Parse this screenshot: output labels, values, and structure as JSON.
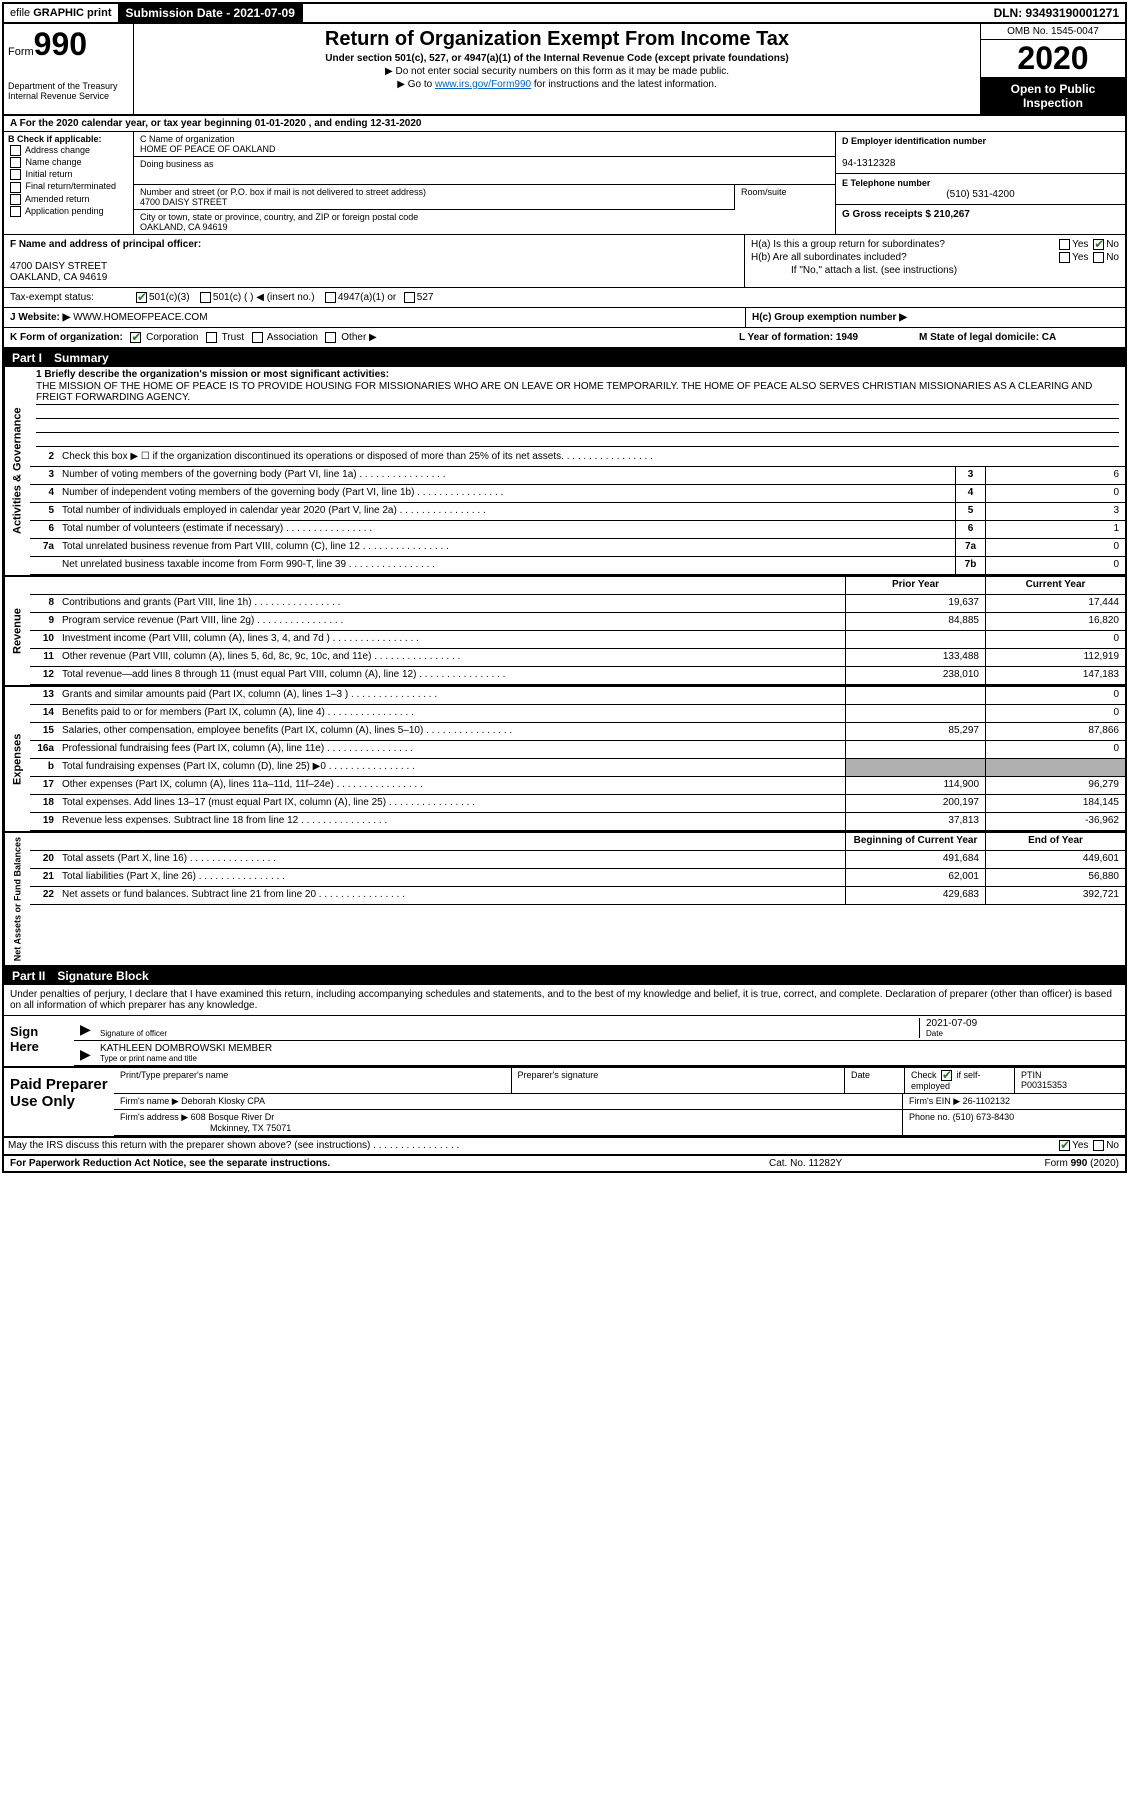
{
  "topbar": {
    "efile_prefix": "efile",
    "efile_graphic": "GRAPHIC",
    "efile_print": "print",
    "submission_label": "Submission Date - 2021-07-09",
    "dln": "DLN: 93493190001271"
  },
  "header": {
    "form_label": "Form",
    "form_number": "990",
    "dept1": "Department of the Treasury",
    "dept2": "Internal Revenue Service",
    "title": "Return of Organization Exempt From Income Tax",
    "subtitle": "Under section 501(c), 527, or 4947(a)(1) of the Internal Revenue Code (except private foundations)",
    "note1": "▶ Do not enter social security numbers on this form as it may be made public.",
    "note2_pre": "▶ Go to ",
    "note2_link": "www.irs.gov/Form990",
    "note2_post": " for instructions and the latest information.",
    "omb": "OMB No. 1545-0047",
    "year": "2020",
    "open_public": "Open to Public Inspection"
  },
  "section_a": "A For the 2020 calendar year, or tax year beginning 01-01-2020    , and ending 12-31-2020",
  "col_b": {
    "label": "B Check if applicable:",
    "opts": [
      "Address change",
      "Name change",
      "Initial return",
      "Final return/terminated",
      "Amended return",
      "Application pending"
    ]
  },
  "col_c": {
    "name_label": "C Name of organization",
    "name": "HOME OF PEACE OF OAKLAND",
    "dba_label": "Doing business as",
    "addr_label": "Number and street (or P.O. box if mail is not delivered to street address)",
    "room_label": "Room/suite",
    "addr": "4700 DAISY STREET",
    "city_label": "City or town, state or province, country, and ZIP or foreign postal code",
    "city": "OAKLAND, CA  94619"
  },
  "col_d": {
    "ein_label": "D Employer identification number",
    "ein": "94-1312328",
    "phone_label": "E Telephone number",
    "phone": "(510) 531-4200",
    "gross_label": "G Gross receipts $ 210,267"
  },
  "col_f": {
    "label": "F  Name and address of principal officer:",
    "addr1": "4700 DAISY STREET",
    "addr2": "OAKLAND, CA  94619"
  },
  "col_h": {
    "ha": "H(a)  Is this a group return for subordinates?",
    "hb": "H(b)  Are all subordinates included?",
    "hb_note": "If \"No,\" attach a list. (see instructions)",
    "hc": "H(c)  Group exemption number ▶"
  },
  "tax_exempt": {
    "label": "Tax-exempt status:",
    "opts": [
      "501(c)(3)",
      "501(c) (  ) ◀ (insert no.)",
      "4947(a)(1) or",
      "527"
    ]
  },
  "website": {
    "label": "J   Website: ▶",
    "value": "WWW.HOMEOFPEACE.COM"
  },
  "klm": {
    "k": "K Form of organization:",
    "k_opts": [
      "Corporation",
      "Trust",
      "Association",
      "Other ▶"
    ],
    "l": "L Year of formation: 1949",
    "m": "M State of legal domicile: CA"
  },
  "part1": {
    "label": "Part I",
    "title": "Summary"
  },
  "mission": {
    "label": "1  Briefly describe the organization's mission or most significant activities:",
    "text": "THE MISSION OF THE HOME OF PEACE IS TO PROVIDE HOUSING FOR MISSIONARIES WHO ARE ON LEAVE OR HOME TEMPORARILY. THE HOME OF PEACE ALSO SERVES CHRISTIAN MISSIONARIES AS A CLEARING AND FREIGT FORWARDING AGENCY."
  },
  "gov_lines": [
    {
      "num": "2",
      "desc": "Check this box ▶ ☐  if the organization discontinued its operations or disposed of more than 25% of its net assets."
    },
    {
      "num": "3",
      "desc": "Number of voting members of the governing body (Part VI, line 1a)",
      "box": "3",
      "val": "6"
    },
    {
      "num": "4",
      "desc": "Number of independent voting members of the governing body (Part VI, line 1b)",
      "box": "4",
      "val": "0"
    },
    {
      "num": "5",
      "desc": "Total number of individuals employed in calendar year 2020 (Part V, line 2a)",
      "box": "5",
      "val": "3"
    },
    {
      "num": "6",
      "desc": "Total number of volunteers (estimate if necessary)",
      "box": "6",
      "val": "1"
    },
    {
      "num": "7a",
      "desc": "Total unrelated business revenue from Part VIII, column (C), line 12",
      "box": "7a",
      "val": "0"
    },
    {
      "num": "",
      "desc": "Net unrelated business taxable income from Form 990-T, line 39",
      "box": "7b",
      "val": "0"
    }
  ],
  "rev_header": {
    "prior": "Prior Year",
    "current": "Current Year"
  },
  "rev_lines": [
    {
      "num": "8",
      "desc": "Contributions and grants (Part VIII, line 1h)",
      "prior": "19,637",
      "current": "17,444"
    },
    {
      "num": "9",
      "desc": "Program service revenue (Part VIII, line 2g)",
      "prior": "84,885",
      "current": "16,820"
    },
    {
      "num": "10",
      "desc": "Investment income (Part VIII, column (A), lines 3, 4, and 7d )",
      "prior": "",
      "current": "0"
    },
    {
      "num": "11",
      "desc": "Other revenue (Part VIII, column (A), lines 5, 6d, 8c, 9c, 10c, and 11e)",
      "prior": "133,488",
      "current": "112,919"
    },
    {
      "num": "12",
      "desc": "Total revenue—add lines 8 through 11 (must equal Part VIII, column (A), line 12)",
      "prior": "238,010",
      "current": "147,183"
    }
  ],
  "exp_lines": [
    {
      "num": "13",
      "desc": "Grants and similar amounts paid (Part IX, column (A), lines 1–3 )",
      "prior": "",
      "current": "0"
    },
    {
      "num": "14",
      "desc": "Benefits paid to or for members (Part IX, column (A), line 4)",
      "prior": "",
      "current": "0"
    },
    {
      "num": "15",
      "desc": "Salaries, other compensation, employee benefits (Part IX, column (A), lines 5–10)",
      "prior": "85,297",
      "current": "87,866"
    },
    {
      "num": "16a",
      "desc": "Professional fundraising fees (Part IX, column (A), line 11e)",
      "prior": "",
      "current": "0"
    },
    {
      "num": "b",
      "desc": "Total fundraising expenses (Part IX, column (D), line 25) ▶0",
      "prior": "grey",
      "current": "grey"
    },
    {
      "num": "17",
      "desc": "Other expenses (Part IX, column (A), lines 11a–11d, 11f–24e)",
      "prior": "114,900",
      "current": "96,279"
    },
    {
      "num": "18",
      "desc": "Total expenses. Add lines 13–17 (must equal Part IX, column (A), line 25)",
      "prior": "200,197",
      "current": "184,145"
    },
    {
      "num": "19",
      "desc": "Revenue less expenses. Subtract line 18 from line 12",
      "prior": "37,813",
      "current": "-36,962"
    }
  ],
  "net_header": {
    "prior": "Beginning of Current Year",
    "current": "End of Year"
  },
  "net_lines": [
    {
      "num": "20",
      "desc": "Total assets (Part X, line 16)",
      "prior": "491,684",
      "current": "449,601"
    },
    {
      "num": "21",
      "desc": "Total liabilities (Part X, line 26)",
      "prior": "62,001",
      "current": "56,880"
    },
    {
      "num": "22",
      "desc": "Net assets or fund balances. Subtract line 21 from line 20",
      "prior": "429,683",
      "current": "392,721"
    }
  ],
  "part2": {
    "label": "Part II",
    "title": "Signature Block"
  },
  "sig": {
    "intro": "Under penalties of perjury, I declare that I have examined this return, including accompanying schedules and statements, and to the best of my knowledge and belief, it is true, correct, and complete. Declaration of preparer (other than officer) is based on all information of which preparer has any knowledge.",
    "sign_here": "Sign Here",
    "sig_officer": "Signature of officer",
    "date": "Date",
    "date_val": "2021-07-09",
    "name": "KATHLEEN DOMBROWSKI MEMBER",
    "name_label": "Type or print name and title"
  },
  "paid": {
    "label": "Paid Preparer Use Only",
    "prep_name_label": "Print/Type preparer's name",
    "prep_sig_label": "Preparer's signature",
    "date_label": "Date",
    "check_label": "Check",
    "self_emp": "if self-employed",
    "ptin_label": "PTIN",
    "ptin": "P00315353",
    "firm_name_label": "Firm's name    ▶",
    "firm_name": "Deborah Klosky CPA",
    "firm_ein_label": "Firm's EIN ▶",
    "firm_ein": "26-1102132",
    "firm_addr_label": "Firm's address ▶",
    "firm_addr1": "608 Bosque River Dr",
    "firm_addr2": "Mckinney, TX  75071",
    "phone_label": "Phone no.",
    "phone": "(510) 673-8430",
    "discuss": "May the IRS discuss this return with the preparer shown above? (see instructions)"
  },
  "footer": {
    "left": "For Paperwork Reduction Act Notice, see the separate instructions.",
    "mid": "Cat. No. 11282Y",
    "right": "Form 990 (2020)"
  },
  "vtabs": {
    "gov": "Activities & Governance",
    "rev": "Revenue",
    "exp": "Expenses",
    "net": "Net Assets or Fund Balances"
  },
  "colors": {
    "link": "#0066cc",
    "check": "#2a7a2a",
    "grey": "#b0b0b0"
  }
}
